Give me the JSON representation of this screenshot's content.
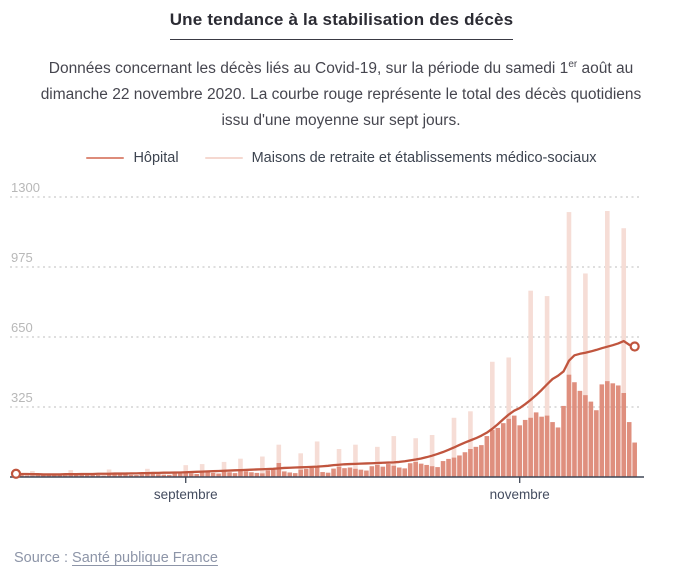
{
  "header": {
    "title": "Une tendance à la stabilisation des décès",
    "subtitle_pre": "Données concernant les décès liés au Covid-19, sur la période du samedi 1",
    "subtitle_sup": "er",
    "subtitle_post": " août au dimanche 22 novembre 2020. La courbe rouge représente le total des décès quotidiens issu d'une moyenne sur sept jours."
  },
  "legend": {
    "items": [
      {
        "label": "Hôpital",
        "color": "#dd8c7a"
      },
      {
        "label": "Maisons de retraite et établissements médico-sociaux",
        "color": "#f5d8d0"
      }
    ]
  },
  "source": {
    "prefix": "Source : ",
    "link_label": "Santé publique France"
  },
  "ui_colors": {
    "grid_line": "#c9c9c9",
    "y_tick_label": "#b8b8b8",
    "x_tick_label": "#454d60",
    "axis_line": "#3f4756",
    "marker_fill": "#ffffff"
  },
  "chart_data": {
    "type": "bar",
    "title": "Une tendance à la stabilisation des décès",
    "x_period": {
      "start": "samedi 1er août 2020",
      "end": "dimanche 22 novembre 2020",
      "days": 114
    },
    "x_tick_labels": [
      {
        "label": "septembre",
        "day_index": 31
      },
      {
        "label": "novembre",
        "day_index": 92
      }
    ],
    "y_ticks": [
      325,
      650,
      975,
      1300
    ],
    "ylim": [
      0,
      1360
    ],
    "grid": "dotted-horizontal",
    "legend_position": "top-center",
    "series": [
      {
        "name": "Hôpital",
        "type": "bar",
        "color": "#df8f7e",
        "values": [
          12,
          9,
          7,
          6,
          8,
          10,
          11,
          13,
          9,
          7,
          8,
          14,
          12,
          15,
          11,
          9,
          7,
          12,
          16,
          15,
          12,
          10,
          9,
          13,
          17,
          16,
          13,
          11,
          10,
          18,
          16,
          20,
          17,
          14,
          25,
          23,
          19,
          16,
          26,
          22,
          18,
          30,
          27,
          22,
          19,
          17,
          31,
          34,
          65,
          26,
          21,
          18,
          34,
          38,
          42,
          45,
          23,
          20,
          39,
          48,
          41,
          44,
          38,
          34,
          30,
          50,
          56,
          48,
          60,
          52,
          44,
          40,
          64,
          70,
          62,
          56,
          50,
          46,
          74,
          84,
          90,
          100,
          115,
          130,
          140,
          148,
          190,
          218,
          228,
          250,
          270,
          285,
          240,
          265,
          275,
          300,
          280,
          285,
          255,
          230,
          330,
          475,
          440,
          400,
          380,
          350,
          310,
          430,
          445,
          435,
          425,
          390,
          255,
          160
        ]
      },
      {
        "name": "Maisons de retraite et établissements médico-sociaux",
        "type": "bar-sparse",
        "color": "#f6ddd6",
        "note": "total des décès (hôpital + Ehpad) les jours de remontée des données, dessiné derrière les barres hôpital",
        "spikes_by_day_index": {
          "3": 28,
          "10": 32,
          "17": 35,
          "24": 38,
          "31": 55,
          "34": 60,
          "38": 70,
          "41": 85,
          "45": 95,
          "48": 150,
          "52": 110,
          "55": 165,
          "59": 130,
          "62": 150,
          "66": 140,
          "69": 190,
          "73": 180,
          "76": 195,
          "80": 275,
          "83": 305,
          "87": 535,
          "90": 555,
          "94": 865,
          "97": 840,
          "101": 1230,
          "104": 945,
          "108": 1235,
          "111": 1155
        }
      },
      {
        "name": "Total des décès quotidiens, moyenne sur sept jours (courbe rouge)",
        "type": "line",
        "color": "#c0553e",
        "endpoint_markers": "open-circle",
        "values": [
          15,
          14,
          14,
          13,
          13,
          12,
          12,
          12,
          12,
          13,
          13,
          13,
          14,
          14,
          14,
          15,
          15,
          15,
          16,
          16,
          16,
          17,
          17,
          18,
          18,
          19,
          19,
          20,
          20,
          21,
          21,
          22,
          23,
          24,
          25,
          26,
          27,
          28,
          29,
          30,
          31,
          32,
          33,
          34,
          35,
          36,
          37,
          38,
          40,
          42,
          43,
          44,
          45,
          46,
          47,
          48,
          50,
          52,
          55,
          57,
          59,
          60,
          61,
          62,
          63,
          64,
          65,
          66,
          67,
          68,
          70,
          73,
          77,
          81,
          86,
          92,
          99,
          107,
          116,
          126,
          137,
          149,
          160,
          170,
          180,
          192,
          206,
          224,
          245,
          268,
          290,
          308,
          320,
          338,
          358,
          380,
          404,
          430,
          455,
          470,
          490,
          540,
          565,
          572,
          577,
          583,
          590,
          598,
          605,
          612,
          620,
          631,
          614,
          606
        ]
      }
    ]
  }
}
